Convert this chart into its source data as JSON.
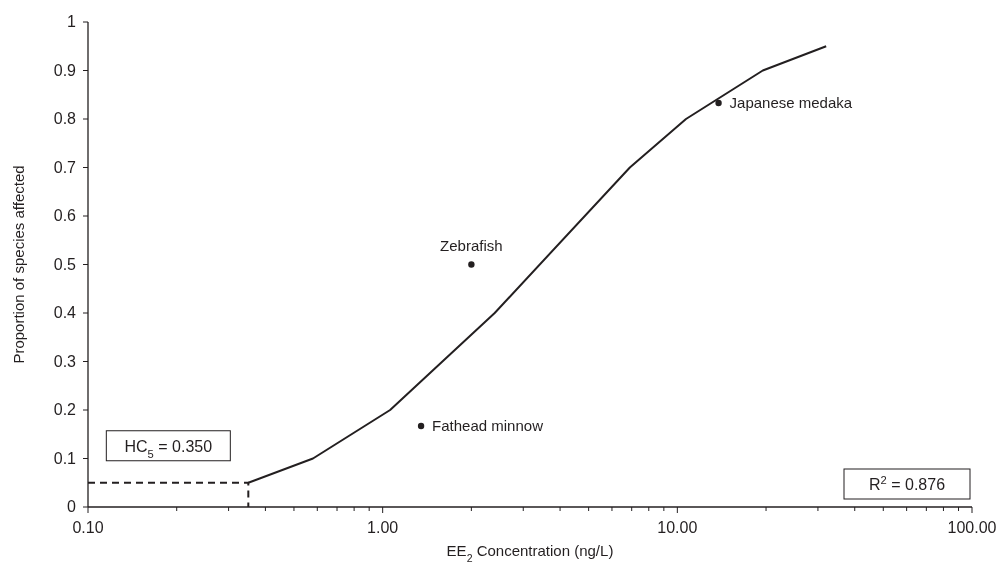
{
  "chart_data": {
    "type": "line",
    "xlabel": "EE$_{2}$ Concentration (ng/L)",
    "ylabel": "Proportion of species affected",
    "log": "x",
    "grid": false,
    "legend": false,
    "marker": "none",
    "line_style": "solid",
    "xlim": [
      0.1,
      100
    ],
    "ylim": [
      0,
      1
    ],
    "xticks": [
      {
        "value": 0.1,
        "label": "0.10"
      },
      {
        "value": 0.2,
        "label": null
      },
      {
        "value": 0.3,
        "label": null
      },
      {
        "value": 0.4,
        "label": null
      },
      {
        "value": 0.5,
        "label": null
      },
      {
        "value": 0.6,
        "label": null
      },
      {
        "value": 0.7,
        "label": null
      },
      {
        "value": 0.8,
        "label": null
      },
      {
        "value": 0.9,
        "label": null
      },
      {
        "value": 1,
        "label": "1.00"
      },
      {
        "value": 2,
        "label": null
      },
      {
        "value": 3,
        "label": null
      },
      {
        "value": 4,
        "label": null
      },
      {
        "value": 5,
        "label": null
      },
      {
        "value": 6,
        "label": null
      },
      {
        "value": 7,
        "label": null
      },
      {
        "value": 8,
        "label": null
      },
      {
        "value": 9,
        "label": null
      },
      {
        "value": 10,
        "label": "10.00"
      },
      {
        "value": 20,
        "label": null
      },
      {
        "value": 30,
        "label": null
      },
      {
        "value": 40,
        "label": null
      },
      {
        "value": 50,
        "label": null
      },
      {
        "value": 60,
        "label": null
      },
      {
        "value": 70,
        "label": null
      },
      {
        "value": 80,
        "label": null
      },
      {
        "value": 90,
        "label": null
      },
      {
        "value": 100,
        "label": "100.00"
      }
    ],
    "yticks": [
      0,
      0.1,
      0.2,
      0.3,
      0.4,
      0.5,
      0.6,
      0.7,
      0.8,
      0.9,
      1
    ],
    "series": [
      {
        "type": "line",
        "color": "#231f20",
        "line_style": "dashed",
        "x": [
          0.1,
          0.35,
          0.35
        ],
        "values": [
          0.05,
          0.05,
          0
        ]
      },
      {
        "type": "line",
        "color": "#231f20",
        "x": [
          0.35,
          0.58,
          1.06,
          2.4,
          6.9,
          10.7,
          19.5,
          32
        ],
        "values": [
          0.05,
          0.1,
          0.2,
          0.4,
          0.7,
          0.8,
          0.9,
          0.95
        ]
      },
      {
        "type": "scatter",
        "marker": "circle",
        "name": "Fathead minnow",
        "color": "#231f20",
        "x": [
          1.35
        ],
        "values": [
          0.167
        ]
      },
      {
        "type": "scatter",
        "marker": "circle",
        "name": "Zebrafish",
        "color": "#231f20",
        "x": [
          2.0
        ],
        "values": [
          0.5
        ]
      },
      {
        "type": "scatter",
        "marker": "circle",
        "name": "Japanese medaka",
        "color": "#231f20",
        "x": [
          13.8
        ],
        "values": [
          0.833
        ]
      }
    ],
    "annotations": [
      {
        "text": "HC$_{5}$ = 0.350",
        "x": 0.35,
        "y": 0.05
      },
      "R$^{2}$ = 0.876"
    ]
  }
}
